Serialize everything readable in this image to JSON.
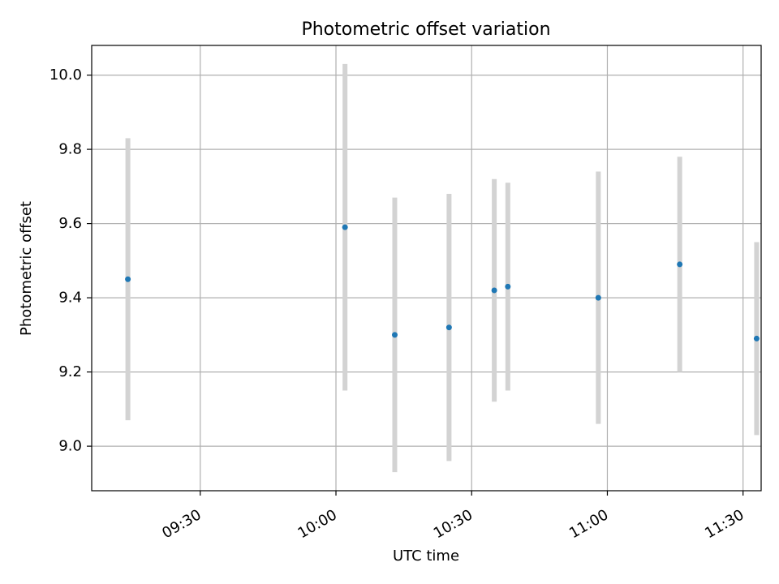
{
  "chart_data": {
    "type": "scatter",
    "title": "Photometric offset variation",
    "xlabel": "UTC time",
    "ylabel": "Photometric offset",
    "x_ticks": [
      "09:30",
      "10:00",
      "10:30",
      "11:00",
      "11:30"
    ],
    "y_ticks": [
      "9.0",
      "9.2",
      "9.4",
      "9.6",
      "9.8",
      "10.0"
    ],
    "xlim": [
      "09:06",
      "11:34"
    ],
    "ylim": [
      8.88,
      10.08
    ],
    "grid": true,
    "colors": {
      "point": "#1f77b4",
      "errorbar": "#d3d3d3",
      "grid": "#b0b0b0"
    },
    "points": [
      {
        "time": "09:14",
        "value": 9.45,
        "error": 0.38
      },
      {
        "time": "10:02",
        "value": 9.59,
        "error": 0.44
      },
      {
        "time": "10:13",
        "value": 9.3,
        "error": 0.37
      },
      {
        "time": "10:25",
        "value": 9.32,
        "error": 0.36
      },
      {
        "time": "10:35",
        "value": 9.42,
        "error": 0.3
      },
      {
        "time": "10:38",
        "value": 9.43,
        "error": 0.28
      },
      {
        "time": "10:58",
        "value": 9.4,
        "error": 0.34
      },
      {
        "time": "11:16",
        "value": 9.49,
        "error": 0.29
      },
      {
        "time": "11:33",
        "value": 9.29,
        "error": 0.26
      }
    ]
  }
}
